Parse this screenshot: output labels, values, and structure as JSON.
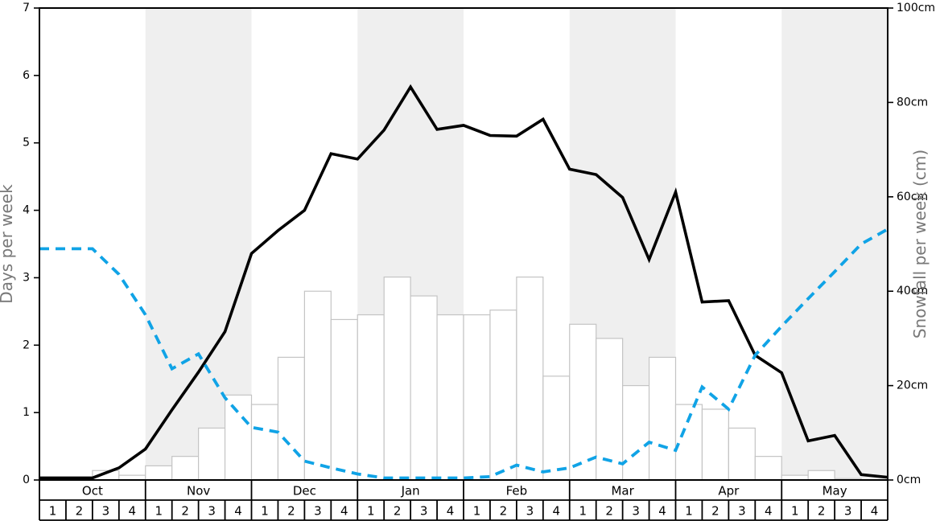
{
  "chart_data": {
    "type": "composite",
    "title": "",
    "x_axis": {
      "months": [
        "Oct",
        "Nov",
        "Dec",
        "Jan",
        "Feb",
        "Mar",
        "Apr",
        "May"
      ],
      "weeks_per_month": 4,
      "week_labels": [
        "1",
        "2",
        "3",
        "4"
      ],
      "shaded_month_indices": [
        1,
        3,
        5,
        7
      ]
    },
    "left_axis": {
      "label": "Days per week",
      "min": 0,
      "max": 7,
      "ticks": [
        "0",
        "1",
        "2",
        "3",
        "4",
        "5",
        "6",
        "7"
      ]
    },
    "right_axis": {
      "label": "Snowfall per week (cm)",
      "min": 0,
      "max": 100,
      "tick_values": [
        0,
        20,
        40,
        60,
        80,
        100
      ],
      "ticks": [
        "0cm",
        "20cm",
        "40cm",
        "60cm",
        "80cm",
        "100cm"
      ]
    },
    "series": [
      {
        "name": "snowfall-bars",
        "type": "bar",
        "axis": "right",
        "points_per": "week",
        "values": [
          0,
          0,
          2,
          1,
          3,
          5,
          11,
          18,
          16,
          26,
          40,
          34,
          35,
          43,
          39,
          35,
          35,
          36,
          43,
          22,
          33,
          30,
          20,
          26,
          16,
          15,
          11,
          5,
          1,
          2,
          0.3,
          0
        ]
      },
      {
        "name": "black-days-line",
        "type": "line",
        "axis": "left",
        "points_per": "week-boundary",
        "values": [
          0.03,
          0.03,
          0.03,
          0.18,
          0.46,
          1.04,
          1.6,
          2.2,
          3.36,
          3.7,
          4.0,
          4.84,
          4.76,
          5.19,
          5.83,
          5.2,
          5.26,
          5.11,
          5.1,
          5.35,
          4.61,
          4.53,
          4.19,
          3.27,
          4.27,
          2.64,
          2.66,
          1.85,
          1.59,
          0.58,
          0.66,
          0.08,
          0.04
        ]
      },
      {
        "name": "blue-dashed-days-line",
        "type": "line",
        "axis": "left",
        "points_per": "week-boundary",
        "values": [
          3.43,
          3.43,
          3.43,
          3.05,
          2.45,
          1.65,
          1.87,
          1.22,
          0.78,
          0.71,
          0.28,
          0.18,
          0.09,
          0.03,
          0.03,
          0.03,
          0.03,
          0.05,
          0.22,
          0.12,
          0.18,
          0.34,
          0.24,
          0.56,
          0.44,
          1.38,
          1.05,
          1.85,
          2.28,
          2.69,
          3.09,
          3.5,
          3.72
        ]
      }
    ],
    "style": {
      "black_line_color": "#000000",
      "blue_line_color": "#10A3E6",
      "band_color": "#EFEFEF",
      "bar_fill": "#FFFFFF",
      "bar_stroke": "#C4C4C4",
      "frame_color": "#000000",
      "tick_text_color": "#000000",
      "axis_title_color": "#787878"
    },
    "grid": "off",
    "legend": "none"
  }
}
